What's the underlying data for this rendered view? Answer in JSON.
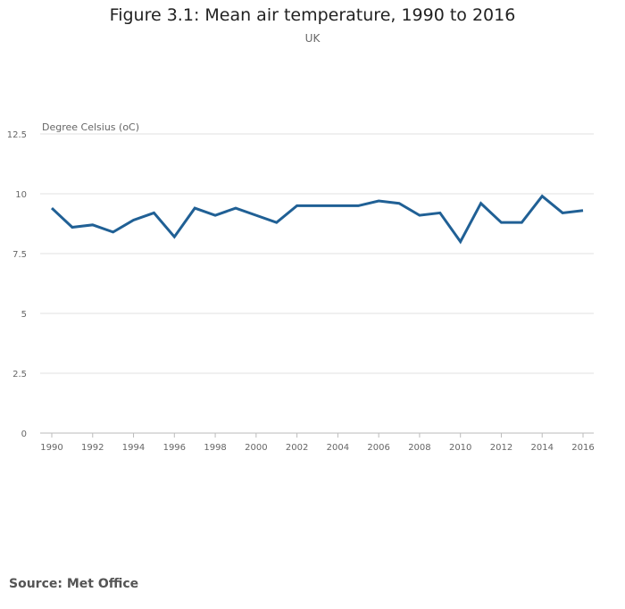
{
  "chart_data": {
    "type": "line",
    "title": "Figure 3.1: Mean air temperature, 1990 to 2016",
    "subtitle": "UK",
    "ylabel": "Degree Celsius (oC)",
    "xlabel": "",
    "ylim": [
      0,
      12.5
    ],
    "yticks": [
      "0",
      "2.5",
      "5",
      "7.5",
      "10",
      "12.5"
    ],
    "xticks": [
      "1990",
      "1992",
      "1994",
      "1996",
      "1998",
      "2000",
      "2002",
      "2004",
      "2006",
      "2008",
      "2010",
      "2012",
      "2014",
      "2016"
    ],
    "grid": true,
    "x": [
      1990,
      1991,
      1992,
      1993,
      1994,
      1995,
      1996,
      1997,
      1998,
      1999,
      2000,
      2001,
      2002,
      2003,
      2004,
      2005,
      2006,
      2007,
      2008,
      2009,
      2010,
      2011,
      2012,
      2013,
      2014,
      2015,
      2016
    ],
    "series": [
      {
        "name": "Mean air temperature",
        "color": "#206095",
        "values": [
          9.4,
          8.6,
          8.7,
          8.4,
          8.9,
          9.2,
          8.2,
          9.4,
          9.1,
          9.4,
          9.1,
          8.8,
          9.5,
          9.5,
          9.5,
          9.5,
          9.7,
          9.6,
          9.1,
          9.2,
          8.0,
          9.6,
          8.8,
          8.8,
          9.9,
          9.2,
          9.3
        ]
      }
    ]
  },
  "source": "Source: Met Office"
}
